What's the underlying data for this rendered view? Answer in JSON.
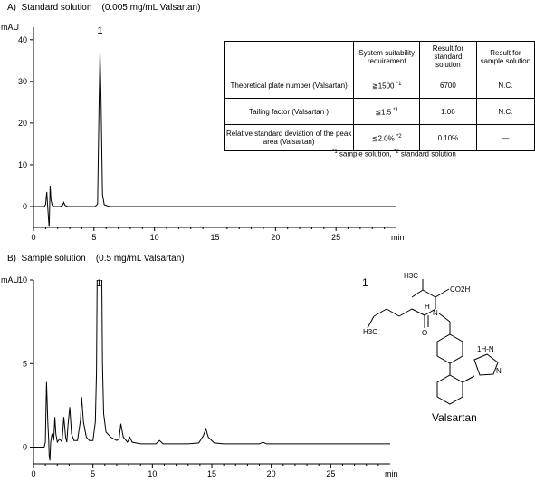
{
  "panelA": {
    "title": "A)  Standard solution    (0.005 mg/mL Valsartan)",
    "chart_data": {
      "type": "line",
      "ylabel": "mAU",
      "xlabel": "min",
      "xlim": [
        0,
        30
      ],
      "ylim": [
        -5,
        43
      ],
      "xticks": [
        0,
        5,
        10,
        15,
        20,
        25
      ],
      "yticks": [
        0,
        10,
        20,
        30,
        40
      ],
      "peak_labels": [
        {
          "x": 5.5,
          "text": "1"
        }
      ],
      "x": [
        0,
        0.9,
        1.0,
        1.05,
        1.1,
        1.15,
        1.2,
        1.28,
        1.3,
        1.34,
        1.38,
        1.45,
        1.55,
        1.7,
        2.2,
        2.4,
        2.5,
        2.6,
        2.8,
        5.1,
        5.3,
        5.42,
        5.5,
        5.58,
        5.7,
        5.85,
        6.3,
        15,
        30
      ],
      "y": [
        0,
        0,
        0.5,
        2,
        3.5,
        1,
        -1,
        -4.5,
        -4.5,
        0.5,
        5,
        1.5,
        0.3,
        0,
        0,
        0.3,
        1,
        0.3,
        0,
        0,
        0.6,
        24,
        37,
        26,
        3,
        0.4,
        0,
        0,
        0
      ]
    }
  },
  "panelB": {
    "title": "B)  Sample solution    (0.5 mg/mL Valsartan)",
    "chart_data": {
      "type": "line",
      "ylabel": "mAU",
      "xlabel": "min",
      "xlim": [
        0,
        30
      ],
      "ylim": [
        -1,
        10
      ],
      "xticks": [
        0,
        5,
        10,
        15,
        20,
        25
      ],
      "yticks": [
        0,
        5,
        10
      ],
      "peak_labels": [
        {
          "x": 5.5,
          "text": "1"
        }
      ],
      "x": [
        0,
        0.9,
        1.0,
        1.05,
        1.1,
        1.2,
        1.28,
        1.32,
        1.38,
        1.45,
        1.55,
        1.7,
        1.8,
        1.88,
        2.0,
        2.2,
        2.4,
        2.55,
        2.7,
        2.8,
        2.9,
        3.05,
        3.2,
        3.4,
        3.7,
        3.95,
        4.05,
        4.2,
        4.45,
        4.7,
        5.0,
        5.2,
        5.3,
        5.35,
        5.75,
        5.8,
        5.9,
        6.1,
        6.5,
        7.0,
        7.2,
        7.35,
        7.55,
        7.9,
        8.1,
        8.3,
        9,
        10.3,
        10.6,
        10.9,
        13,
        13.9,
        14.3,
        14.5,
        14.7,
        15.2,
        16,
        19,
        19.3,
        19.6,
        25,
        30
      ],
      "y": [
        0,
        0,
        0.3,
        2.3,
        3.9,
        1.5,
        0.4,
        -0.5,
        -0.8,
        0.3,
        0.8,
        0.4,
        1.8,
        0.8,
        0.3,
        0.5,
        0.3,
        1.8,
        0.6,
        0.3,
        1.3,
        2.4,
        0.8,
        0.4,
        0.4,
        1.6,
        3.0,
        1.5,
        0.6,
        0.4,
        0.4,
        1.5,
        4.5,
        10,
        10,
        5,
        2.0,
        0.9,
        0.6,
        0.4,
        0.5,
        1.4,
        0.6,
        0.3,
        0.6,
        0.3,
        0.2,
        0.2,
        0.4,
        0.2,
        0.2,
        0.25,
        0.7,
        1.1,
        0.6,
        0.25,
        0.2,
        0.2,
        0.3,
        0.2,
        0.2,
        0.2
      ]
    }
  },
  "table": {
    "headers": [
      "",
      "System suitability requirement",
      "Result for standard solution",
      "Result for sample solution"
    ],
    "rows": [
      {
        "item": "Theoretical plate number (Valsartan)",
        "req": "≧1500",
        "req_mark": "*1",
        "std": "6700",
        "sample": "N.C."
      },
      {
        "item": "Tailing factor (Valsartan )",
        "req": "≦1.5",
        "req_mark": "*1",
        "std": "1.06",
        "sample": "N.C."
      },
      {
        "item": "Relative standard deviation of the peak area (Valsartan)",
        "req": "≦2.0%",
        "req_mark": "*2",
        "std": "0.10%",
        "sample": "—"
      }
    ],
    "footnote_mark1": "*1",
    "footnote_text1": " sample solution, ",
    "footnote_mark2": "*2",
    "footnote_text2": " standard solution"
  },
  "compound": {
    "number": "1",
    "name": "Valsartan",
    "labels": {
      "ch3_top": "H3C",
      "co2h": "CO2H",
      "h": "H",
      "n": "N",
      "o": "O",
      "ch3_chain": "H3C",
      "nh": "1H-N",
      "n_ring": "N"
    }
  }
}
